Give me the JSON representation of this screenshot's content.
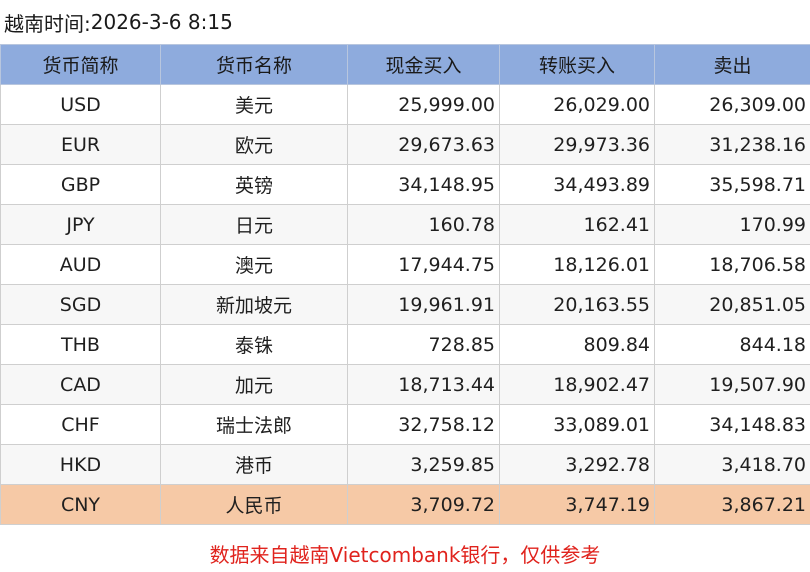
{
  "header": {
    "label": "越南时间:",
    "datetime": "2026-3-6 8:15"
  },
  "table": {
    "columns": [
      "货币简称",
      "货币名称",
      "现金买入",
      "转账买入",
      "卖出"
    ],
    "rows": [
      {
        "code": "USD",
        "name": "美元",
        "cash_buy": "25,999.00",
        "transfer_buy": "26,029.00",
        "sell": "26,309.00"
      },
      {
        "code": "EUR",
        "name": "欧元",
        "cash_buy": "29,673.63",
        "transfer_buy": "29,973.36",
        "sell": "31,238.16"
      },
      {
        "code": "GBP",
        "name": "英镑",
        "cash_buy": "34,148.95",
        "transfer_buy": "34,493.89",
        "sell": "35,598.71"
      },
      {
        "code": "JPY",
        "name": "日元",
        "cash_buy": "160.78",
        "transfer_buy": "162.41",
        "sell": "170.99"
      },
      {
        "code": "AUD",
        "name": "澳元",
        "cash_buy": "17,944.75",
        "transfer_buy": "18,126.01",
        "sell": "18,706.58"
      },
      {
        "code": "SGD",
        "name": "新加坡元",
        "cash_buy": "19,961.91",
        "transfer_buy": "20,163.55",
        "sell": "20,851.05"
      },
      {
        "code": "THB",
        "name": "泰铢",
        "cash_buy": "728.85",
        "transfer_buy": "809.84",
        "sell": "844.18"
      },
      {
        "code": "CAD",
        "name": "加元",
        "cash_buy": "18,713.44",
        "transfer_buy": "18,902.47",
        "sell": "19,507.90"
      },
      {
        "code": "CHF",
        "name": "瑞士法郎",
        "cash_buy": "32,758.12",
        "transfer_buy": "33,089.01",
        "sell": "34,148.83"
      },
      {
        "code": "HKD",
        "name": "港币",
        "cash_buy": "3,259.85",
        "transfer_buy": "3,292.78",
        "sell": "3,418.70"
      },
      {
        "code": "CNY",
        "name": "人民币",
        "cash_buy": "3,709.72",
        "transfer_buy": "3,747.19",
        "sell": "3,867.21"
      }
    ],
    "highlighted_row_code": "CNY"
  },
  "footnote": "数据来自越南Vietcombank银行，仅供参考",
  "colors": {
    "header_bg": "#8eabdd",
    "highlight_row_bg": "#f6c9a6",
    "footnote_text": "#e0231d"
  }
}
